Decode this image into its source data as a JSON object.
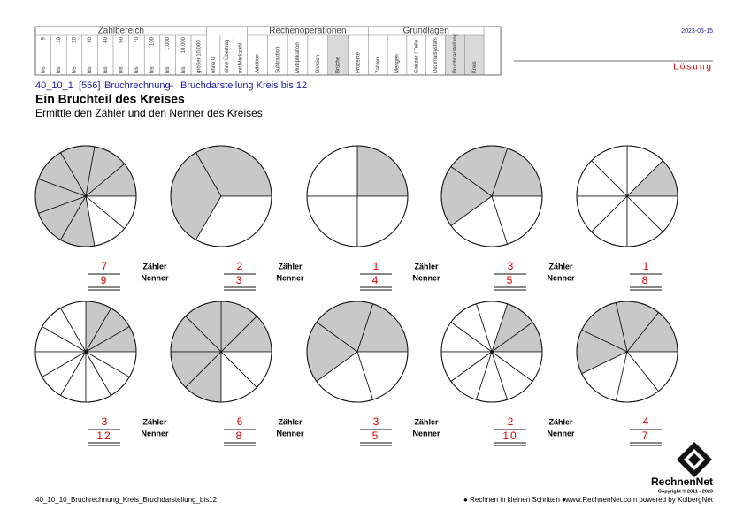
{
  "header": {
    "groups": [
      {
        "title": "Zahlbereich",
        "columns": [
          {
            "top": "9",
            "bottom": "bis"
          },
          {
            "top": "10",
            "bottom": "bis"
          },
          {
            "top": "20",
            "bottom": "bis"
          },
          {
            "top": "30",
            "bottom": "bis"
          },
          {
            "top": "40",
            "bottom": "bis"
          },
          {
            "top": "50",
            "bottom": "bis"
          },
          {
            "top": "70",
            "bottom": "bis"
          },
          {
            "top": "100",
            "bottom": "bis"
          },
          {
            "top": "1.000",
            "bottom": "bis"
          },
          {
            "top": "10.000",
            "bottom": "bis"
          },
          {
            "top": "größer 10.000"
          }
        ]
      },
      {
        "columns": [
          {
            "top": "ohne 0"
          },
          {
            "top": "ohne Übertrag"
          },
          {
            "top": "mit Merkzahl"
          }
        ]
      },
      {
        "title": "Rechenoperationen",
        "columns": [
          {
            "top": "Addition"
          },
          {
            "top": "Subtraktion"
          },
          {
            "top": "Multiplikation"
          },
          {
            "top": "Division"
          },
          {
            "top": "Brüche",
            "highlighted": true
          },
          {
            "top": "Prozente"
          }
        ]
      },
      {
        "title": "Grundlagen",
        "columns": [
          {
            "top": "Zahlen"
          },
          {
            "top": "Mengen"
          },
          {
            "top": "Ganzes / Teile"
          },
          {
            "top": "Dezimalsystem"
          },
          {
            "top": "Bruchdarstellung",
            "highlighted": true
          },
          {
            "top": "Kreis",
            "highlighted": true
          }
        ]
      }
    ],
    "date": "2023-05-15",
    "solution": "Lösung"
  },
  "breadcrumb": {
    "code": "40_10_1",
    "number": "[566]",
    "topic": "Bruchrechnung",
    "dash": "–",
    "subtopic": "Bruchdarstellung Kreis bis 12"
  },
  "title": "Ein Bruchteil des Kreises",
  "instruction": "Ermittle den Zähler und den Nenner des Kreises",
  "labels": {
    "numerator": "Zähler",
    "denominator": "Nenner"
  },
  "exercises": [
    {
      "numerator": 7,
      "denominator": 9
    },
    {
      "numerator": 2,
      "denominator": 3
    },
    {
      "numerator": 1,
      "denominator": 4
    },
    {
      "numerator": 3,
      "denominator": 5
    },
    {
      "numerator": 1,
      "denominator": 8
    },
    {
      "numerator": 3,
      "denominator": 12
    },
    {
      "numerator": 6,
      "denominator": 8
    },
    {
      "numerator": 3,
      "denominator": 5
    },
    {
      "numerator": 2,
      "denominator": 10
    },
    {
      "numerator": 4,
      "denominator": 7
    }
  ],
  "footer": {
    "file": "40_10_10_Bruchrechnung_Kreis_Bruchdarstellung_bis12",
    "slogan": "● Rechnen in kleinen Schritten ●",
    "website": "www.RechnenNet.com powered by KolbergNet",
    "brand": "RechnenNet",
    "copyright": "Copyright © 2011 - 2023"
  }
}
